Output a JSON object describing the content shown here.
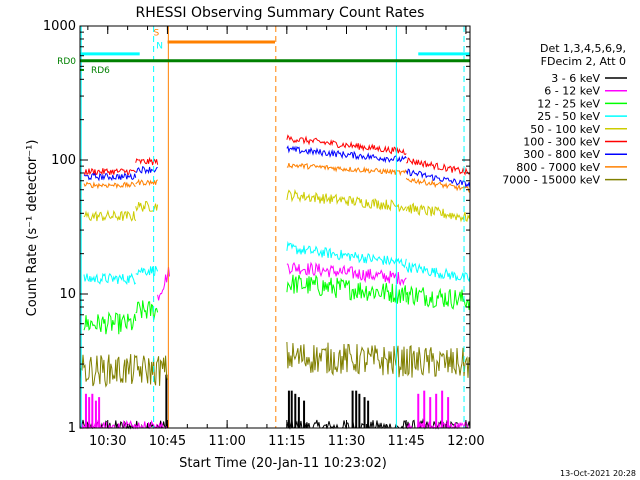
{
  "chart_data": {
    "type": "line",
    "title": "RHESSI Observing Summary Count Rates",
    "xlabel": "Start Time (20-Jan-11 10:23:02)",
    "ylabel": "Count Rate (s⁻¹ detector⁻¹)",
    "x_unit": "minutes after 10:23:02",
    "xlim": [
      0,
      98
    ],
    "ylim": [
      1,
      1000
    ],
    "y_scale": "log",
    "x_ticks": [
      {
        "label": "10:30",
        "value": 6.97
      },
      {
        "label": "10:45",
        "value": 21.97
      },
      {
        "label": "11:00",
        "value": 36.97
      },
      {
        "label": "11:15",
        "value": 51.97
      },
      {
        "label": "11:30",
        "value": 66.97
      },
      {
        "label": "11:45",
        "value": 81.97
      },
      {
        "label": "12:00",
        "value": 96.97
      }
    ],
    "y_ticks": [
      {
        "label": "1",
        "value": 1
      },
      {
        "label": "10",
        "value": 10
      },
      {
        "label": "100",
        "value": 100
      },
      {
        "label": "1000",
        "value": 1000
      }
    ],
    "legend": {
      "position": "right",
      "header": [
        "Det 1,3,4,5,6,9,",
        "FDecim 2, Att 0"
      ]
    },
    "series": [
      {
        "name": "3 - 6 keV",
        "color": "#000000",
        "kind": "noisy",
        "noise": 0.06,
        "segments": [
          {
            "x": [
              0,
              22
            ],
            "y": [
              1,
              1
            ],
            "spikes": [
              [
                21.7,
                2.5
              ]
            ]
          },
          {
            "x": [
              52,
              98
            ],
            "y": [
              1,
              1
            ],
            "spikes": [
              [
                52.5,
                1.9
              ],
              [
                53.2,
                1.9
              ],
              [
                54.1,
                1.8
              ],
              [
                55.0,
                1.7
              ],
              [
                56.3,
                1.6
              ],
              [
                68.5,
                1.9
              ],
              [
                69.4,
                1.9
              ],
              [
                70.2,
                1.8
              ],
              [
                71.5,
                1.7
              ],
              [
                72.4,
                1.6
              ]
            ]
          }
        ]
      },
      {
        "name": "6 - 12 keV",
        "color": "#ff00ff",
        "kind": "noisy",
        "noise": 0.05,
        "segments": [
          {
            "x": [
              0,
              22
            ],
            "y": [
              1,
              1
            ],
            "spikes": [
              [
                1.5,
                1.8
              ],
              [
                2.3,
                1.7
              ],
              [
                3.1,
                1.8
              ],
              [
                4.0,
                1.6
              ],
              [
                4.8,
                1.7
              ]
            ]
          },
          {
            "x": [
              19.5,
              22.5
            ],
            "y": [
              9.5,
              15
            ]
          },
          {
            "x": [
              52,
              82
            ],
            "y": [
              16,
              13
            ]
          },
          {
            "x": [
              82,
              98
            ],
            "y": [
              1,
              1
            ],
            "spikes": [
              [
                85,
                1.8
              ],
              [
                86.5,
                1.9
              ],
              [
                88,
                1.7
              ],
              [
                89.5,
                1.8
              ],
              [
                91,
                1.9
              ],
              [
                92.5,
                1.7
              ]
            ]
          }
        ]
      },
      {
        "name": "12 - 25 keV",
        "color": "#00ff00",
        "kind": "noisy",
        "noise": 0.08,
        "segments": [
          {
            "x": [
              1,
              14
            ],
            "y": [
              6,
              6
            ]
          },
          {
            "x": [
              14,
              19.5
            ],
            "y": [
              7.5,
              7.5
            ]
          },
          {
            "x": [
              52,
              82
            ],
            "y": [
              12,
              10
            ]
          },
          {
            "x": [
              82,
              98
            ],
            "y": [
              10,
              9
            ]
          }
        ]
      },
      {
        "name": "25 - 50 keV",
        "color": "#00ffff",
        "kind": "noisy",
        "noise": 0.04,
        "segments": [
          {
            "x": [
              1,
              14
            ],
            "y": [
              13,
              13
            ]
          },
          {
            "x": [
              14,
              19.5
            ],
            "y": [
              15,
              15
            ]
          },
          {
            "x": [
              52,
              82
            ],
            "y": [
              22,
              17
            ]
          },
          {
            "x": [
              82,
              98
            ],
            "y": [
              16,
              13
            ]
          }
        ]
      },
      {
        "name": "50 - 100 keV",
        "color": "#cccc00",
        "kind": "noisy",
        "noise": 0.04,
        "segments": [
          {
            "x": [
              1,
              14
            ],
            "y": [
              38,
              38
            ]
          },
          {
            "x": [
              14,
              19.5
            ],
            "y": [
              45,
              45
            ]
          },
          {
            "x": [
              52,
              82
            ],
            "y": [
              55,
              45
            ]
          },
          {
            "x": [
              82,
              98
            ],
            "y": [
              44,
              37
            ]
          }
        ]
      },
      {
        "name": "100 - 300 keV",
        "color": "#ff0000",
        "kind": "noisy",
        "noise": 0.025,
        "segments": [
          {
            "x": [
              1,
              14
            ],
            "y": [
              82,
              82
            ]
          },
          {
            "x": [
              14,
              19.5
            ],
            "y": [
              97,
              97
            ]
          },
          {
            "x": [
              52,
              82
            ],
            "y": [
              145,
              115
            ]
          },
          {
            "x": [
              82,
              98
            ],
            "y": [
              100,
              80
            ]
          }
        ]
      },
      {
        "name": "300 - 800 keV",
        "color": "#0000ff",
        "kind": "noisy",
        "noise": 0.025,
        "segments": [
          {
            "x": [
              1,
              14
            ],
            "y": [
              75,
              75
            ]
          },
          {
            "x": [
              14,
              19.5
            ],
            "y": [
              85,
              85
            ]
          },
          {
            "x": [
              52,
              82
            ],
            "y": [
              120,
              100
            ]
          },
          {
            "x": [
              82,
              98
            ],
            "y": [
              82,
              65
            ]
          }
        ]
      },
      {
        "name": "800 - 7000 keV",
        "color": "#ff8000",
        "kind": "noisy",
        "noise": 0.02,
        "segments": [
          {
            "x": [
              1,
              14
            ],
            "y": [
              65,
              65
            ]
          },
          {
            "x": [
              14,
              19.5
            ],
            "y": [
              68,
              68
            ]
          },
          {
            "x": [
              52,
              82
            ],
            "y": [
              92,
              80
            ]
          },
          {
            "x": [
              82,
              98
            ],
            "y": [
              72,
              60
            ]
          }
        ]
      },
      {
        "name": "7000 - 15000 keV",
        "color": "#808000",
        "kind": "noisy",
        "noise": 0.12,
        "segments": [
          {
            "x": [
              0,
              22
            ],
            "y": [
              2.7,
              2.7
            ]
          },
          {
            "x": [
              52,
              98
            ],
            "y": [
              3.4,
              3.0
            ]
          }
        ]
      }
    ],
    "overlays": {
      "lines": [
        {
          "label": "RD0",
          "color": "#008000",
          "x": [
            0,
            98
          ],
          "y": 550,
          "width": 3
        },
        {
          "label": "RD6",
          "color": "#008000",
          "x": [
            0,
            1
          ],
          "y": 470,
          "width": 2
        },
        {
          "color": "#00ffff",
          "x": [
            0,
            15
          ],
          "y": 620,
          "width": 3
        },
        {
          "color": "#00ffff",
          "x": [
            85,
            98
          ],
          "y": 620,
          "width": 3
        },
        {
          "color": "#ff8000",
          "x": [
            22,
            49
          ],
          "y": 760,
          "width": 3
        }
      ],
      "vlines": [
        {
          "x": 0.3,
          "color": "#00ffff",
          "dash": false
        },
        {
          "x": 18.5,
          "color": "#00ffff",
          "dash": true
        },
        {
          "x": 22.2,
          "color": "#ff8000",
          "dash": false
        },
        {
          "x": 49.2,
          "color": "#ff8000",
          "dash": true
        },
        {
          "x": 79.5,
          "color": "#00ffff",
          "dash": false
        },
        {
          "x": 96.5,
          "color": "#00ffff",
          "dash": true
        }
      ],
      "markers": [
        {
          "text": "S",
          "color": "#ff8000",
          "x": 19.2,
          "y": 850
        },
        {
          "text": "N",
          "color": "#00ffff",
          "x": 20.0,
          "y": 680
        }
      ]
    }
  },
  "footer": {
    "date": "13-Oct-2021 20:28"
  }
}
